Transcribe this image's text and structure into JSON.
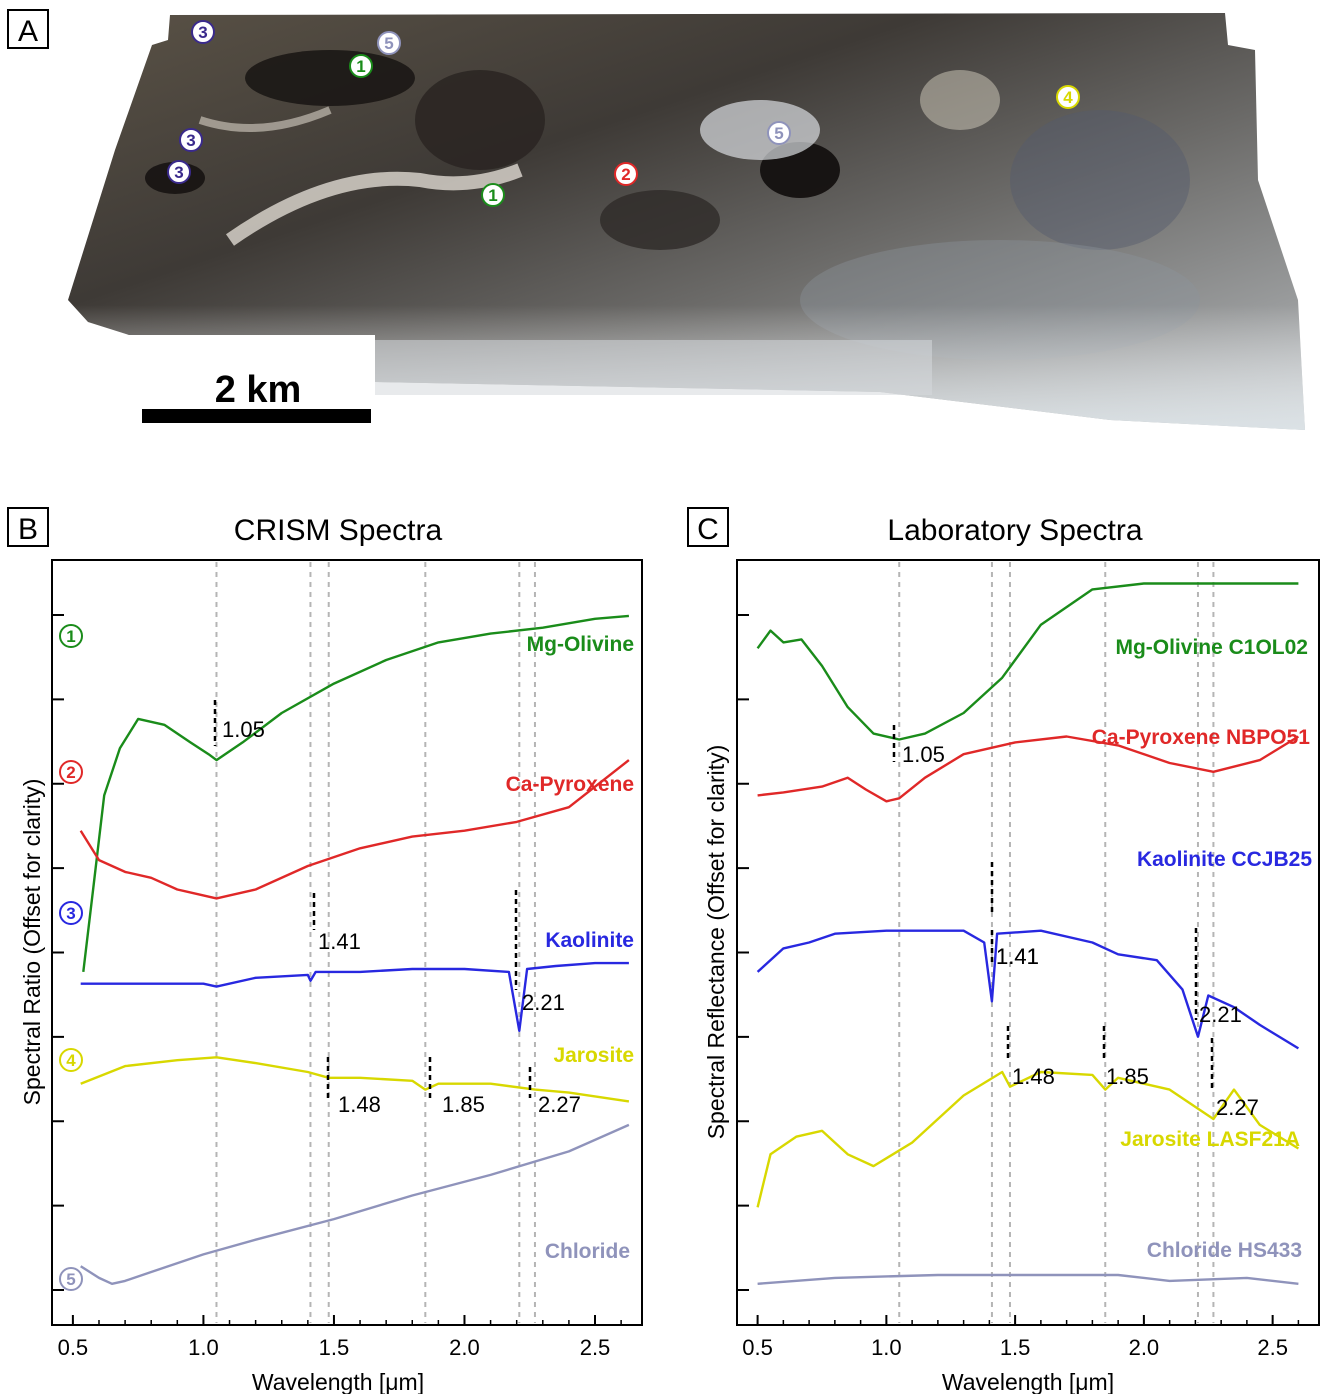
{
  "panels": {
    "a": {
      "letter": "A"
    },
    "b": {
      "letter": "B"
    },
    "c": {
      "letter": "C"
    }
  },
  "map": {
    "scalebar_label": "2 km",
    "markers": [
      {
        "num": "3",
        "color": "#3a2a8c"
      },
      {
        "num": "1",
        "color": "#1a8c1a"
      },
      {
        "num": "5",
        "color": "#8f93bb"
      },
      {
        "num": "3",
        "color": "#3a2a8c"
      },
      {
        "num": "3",
        "color": "#3a2a8c"
      },
      {
        "num": "1",
        "color": "#1a8c1a"
      },
      {
        "num": "2",
        "color": "#e02828"
      },
      {
        "num": "5",
        "color": "#8f93bb"
      },
      {
        "num": "4",
        "color": "#d8d800"
      }
    ]
  },
  "chart_data": [
    {
      "type": "line",
      "panel": "B",
      "title": "CRISM Spectra",
      "xlabel": "Wavelength [μm]",
      "ylabel": "Spectral Ratio (Offset for clarity)",
      "xlim": [
        0.42,
        2.68
      ],
      "x_ticks": [
        "0.5",
        "1.0",
        "1.5",
        "2.0",
        "2.5"
      ],
      "x_tick_values": [
        0.5,
        1.0,
        1.5,
        2.0,
        2.5
      ],
      "y_ticks_labeled": false,
      "reference_lines": [
        1.05,
        1.41,
        1.48,
        1.85,
        2.21,
        2.27
      ],
      "annotations": [
        "1.05",
        "1.41",
        "1.48",
        "1.85",
        "2.21",
        "2.27"
      ],
      "series": [
        {
          "name": "Mg-Olivine",
          "marker": "1",
          "color": "#1a8c1a",
          "x": [
            0.54,
            0.58,
            0.62,
            0.68,
            0.75,
            0.85,
            0.95,
            1.02,
            1.05,
            1.15,
            1.3,
            1.5,
            1.7,
            1.9,
            2.1,
            2.3,
            2.5,
            2.63
          ],
          "y": [
            -3.0,
            -1.5,
            0.0,
            0.8,
            1.3,
            1.2,
            0.9,
            0.7,
            0.6,
            0.9,
            1.4,
            1.9,
            2.3,
            2.6,
            2.75,
            2.85,
            3.0,
            3.05
          ]
        },
        {
          "name": "Ca-Pyroxene",
          "marker": "2",
          "color": "#e02828",
          "x": [
            0.53,
            0.6,
            0.7,
            0.8,
            0.9,
            1.0,
            1.05,
            1.1,
            1.2,
            1.4,
            1.6,
            1.8,
            2.0,
            2.2,
            2.4,
            2.63
          ],
          "y": [
            -0.6,
            -1.1,
            -1.3,
            -1.4,
            -1.6,
            -1.7,
            -1.75,
            -1.7,
            -1.6,
            -1.2,
            -0.9,
            -0.7,
            -0.6,
            -0.45,
            -0.2,
            0.6
          ]
        },
        {
          "name": "Kaolinite",
          "marker": "3",
          "color": "#2828e0",
          "x": [
            0.53,
            0.8,
            1.0,
            1.05,
            1.2,
            1.4,
            1.41,
            1.43,
            1.6,
            1.8,
            2.0,
            2.17,
            2.21,
            2.24,
            2.35,
            2.5,
            2.63
          ],
          "y": [
            -3.2,
            -3.2,
            -3.2,
            -3.25,
            -3.1,
            -3.05,
            -3.15,
            -3.0,
            -3.0,
            -2.95,
            -2.95,
            -3.0,
            -4.0,
            -2.95,
            -2.9,
            -2.85,
            -2.85
          ]
        },
        {
          "name": "Jarosite",
          "marker": "4",
          "color": "#d8d800",
          "x": [
            0.53,
            0.7,
            0.9,
            1.05,
            1.2,
            1.4,
            1.48,
            1.6,
            1.8,
            1.85,
            1.9,
            2.1,
            2.27,
            2.4,
            2.63
          ],
          "y": [
            -4.9,
            -4.6,
            -4.5,
            -4.45,
            -4.55,
            -4.7,
            -4.8,
            -4.8,
            -4.85,
            -5.0,
            -4.9,
            -4.9,
            -5.0,
            -5.05,
            -5.2
          ]
        },
        {
          "name": "Chloride",
          "marker": "5",
          "color": "#8f93bb",
          "x": [
            0.53,
            0.6,
            0.65,
            0.7,
            0.8,
            1.0,
            1.2,
            1.5,
            1.8,
            2.1,
            2.4,
            2.63
          ],
          "y": [
            -8.0,
            -8.2,
            -8.3,
            -8.25,
            -8.1,
            -7.8,
            -7.55,
            -7.2,
            -6.8,
            -6.45,
            -6.05,
            -5.6
          ]
        }
      ]
    },
    {
      "type": "line",
      "panel": "C",
      "title": "Laboratory Spectra",
      "xlabel": "Wavelength [μm]",
      "ylabel": "Spectral Reflectance (Offset for clarity)",
      "xlim": [
        0.42,
        2.68
      ],
      "x_ticks": [
        "0.5",
        "1.0",
        "1.5",
        "2.0",
        "2.5"
      ],
      "x_tick_values": [
        0.5,
        1.0,
        1.5,
        2.0,
        2.5
      ],
      "y_ticks_labeled": false,
      "reference_lines": [
        1.05,
        1.41,
        1.48,
        1.85,
        2.21,
        2.27
      ],
      "annotations": [
        "1.05",
        "1.41",
        "1.41",
        "1.48",
        "1.85",
        "2.21",
        "2.27"
      ],
      "series": [
        {
          "name": "Mg-Olivine C1OL02",
          "color": "#1a8c1a",
          "x": [
            0.5,
            0.55,
            0.6,
            0.67,
            0.75,
            0.85,
            0.95,
            1.05,
            1.15,
            1.3,
            1.45,
            1.6,
            1.8,
            2.0,
            2.2,
            2.4,
            2.6
          ],
          "y": [
            2.5,
            2.8,
            2.6,
            2.65,
            2.2,
            1.5,
            1.05,
            0.95,
            1.05,
            1.4,
            2.0,
            2.9,
            3.5,
            3.6,
            3.6,
            3.6,
            3.6
          ]
        },
        {
          "name": "Ca-Pyroxene NBPO51",
          "color": "#e02828",
          "x": [
            0.5,
            0.6,
            0.75,
            0.85,
            0.92,
            1.0,
            1.05,
            1.15,
            1.3,
            1.5,
            1.7,
            1.9,
            2.1,
            2.27,
            2.45,
            2.6
          ],
          "y": [
            0.0,
            0.05,
            0.15,
            0.3,
            0.1,
            -0.1,
            -0.05,
            0.3,
            0.7,
            0.9,
            1.0,
            0.85,
            0.55,
            0.4,
            0.6,
            1.0
          ]
        },
        {
          "name": "Kaolinite CCJB25",
          "color": "#2828e0",
          "x": [
            0.5,
            0.6,
            0.7,
            0.8,
            1.0,
            1.3,
            1.38,
            1.41,
            1.43,
            1.6,
            1.8,
            1.9,
            2.05,
            2.15,
            2.21,
            2.25,
            2.35,
            2.45,
            2.6
          ],
          "y": [
            -3.0,
            -2.6,
            -2.5,
            -2.35,
            -2.3,
            -2.3,
            -2.5,
            -3.5,
            -2.35,
            -2.3,
            -2.5,
            -2.7,
            -2.8,
            -3.3,
            -4.1,
            -3.4,
            -3.6,
            -3.9,
            -4.3
          ]
        },
        {
          "name": "Jarosite LASF21A",
          "color": "#d8d800",
          "x": [
            0.5,
            0.55,
            0.65,
            0.75,
            0.85,
            0.95,
            1.1,
            1.3,
            1.45,
            1.48,
            1.6,
            1.8,
            1.85,
            1.9,
            2.1,
            2.27,
            2.35,
            2.45,
            2.6
          ],
          "y": [
            -7.0,
            -6.1,
            -5.8,
            -5.7,
            -6.1,
            -6.3,
            -5.9,
            -5.1,
            -4.7,
            -4.95,
            -4.7,
            -4.75,
            -5.0,
            -4.8,
            -5.0,
            -5.5,
            -5.0,
            -5.6,
            -6.0
          ]
        },
        {
          "name": "Chloride HS433",
          "color": "#8f93bb",
          "x": [
            0.5,
            0.8,
            1.2,
            1.6,
            1.9,
            2.1,
            2.4,
            2.6
          ],
          "y": [
            -8.3,
            -8.2,
            -8.15,
            -8.15,
            -8.15,
            -8.25,
            -8.2,
            -8.3
          ]
        }
      ]
    }
  ]
}
